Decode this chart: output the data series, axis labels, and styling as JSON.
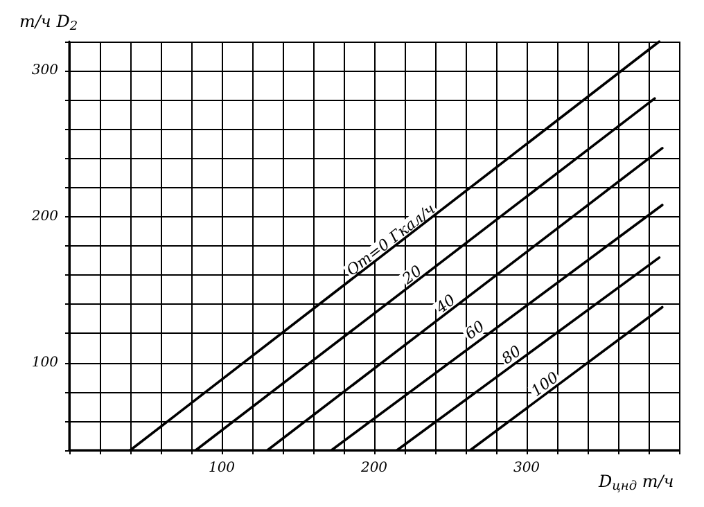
{
  "chart_data": {
    "type": "line",
    "xlabel": "D$_{цнд}$ т/ч",
    "ylabel": "т/ч D$_{2}$",
    "xlim": [
      0,
      400
    ],
    "ylim": [
      40,
      320
    ],
    "xticks": [
      {
        "value": 0,
        "label": null
      },
      {
        "value": 20,
        "label": null
      },
      {
        "value": 40,
        "label": null
      },
      {
        "value": 60,
        "label": null
      },
      {
        "value": 80,
        "label": null
      },
      100,
      {
        "value": 120,
        "label": null
      },
      {
        "value": 140,
        "label": null
      },
      {
        "value": 160,
        "label": null
      },
      {
        "value": 180,
        "label": null
      },
      200,
      {
        "value": 220,
        "label": null
      },
      {
        "value": 240,
        "label": null
      },
      {
        "value": 260,
        "label": null
      },
      {
        "value": 280,
        "label": null
      },
      300,
      {
        "value": 320,
        "label": null
      },
      {
        "value": 340,
        "label": null
      },
      {
        "value": 360,
        "label": null
      },
      {
        "value": 380,
        "label": null
      },
      {
        "value": 400,
        "label": null
      }
    ],
    "yticks": [
      {
        "value": 40,
        "label": null
      },
      {
        "value": 60,
        "label": null
      },
      {
        "value": 80,
        "label": null
      },
      100,
      {
        "value": 120,
        "label": null
      },
      {
        "value": 140,
        "label": null
      },
      {
        "value": 160,
        "label": null
      },
      {
        "value": 180,
        "label": null
      },
      200,
      {
        "value": 220,
        "label": null
      },
      {
        "value": 240,
        "label": null
      },
      {
        "value": 260,
        "label": null
      },
      {
        "value": 280,
        "label": null
      },
      300,
      {
        "value": 320,
        "label": null
      }
    ],
    "grid": true,
    "marker": "none",
    "line_style": "solid",
    "series": [
      {
        "color": "#000000",
        "x": [
          40,
          387
        ],
        "values": [
          40,
          320
        ]
      },
      {
        "color": "#000000",
        "x": [
          83,
          384
        ],
        "values": [
          40,
          281
        ]
      },
      {
        "color": "#000000",
        "x": [
          130,
          389
        ],
        "values": [
          40,
          247
        ]
      },
      {
        "color": "#000000",
        "x": [
          172,
          389
        ],
        "values": [
          40,
          208
        ]
      },
      {
        "color": "#000000",
        "x": [
          215,
          387
        ],
        "values": [
          40,
          172
        ]
      },
      {
        "color": "#000000",
        "x": [
          263,
          389
        ],
        "values": [
          40,
          138
        ]
      }
    ],
    "annotations": [
      {
        "text": "Qт=0 Гкал/ч",
        "x": 214,
        "y": 180
      },
      {
        "text": "20",
        "x": 228,
        "y": 156
      },
      {
        "text": "40",
        "x": 250,
        "y": 136
      },
      {
        "text": "60",
        "x": 269,
        "y": 118
      },
      {
        "text": "80",
        "x": 293,
        "y": 101
      },
      {
        "text": "100",
        "x": 315,
        "y": 81
      }
    ]
  }
}
